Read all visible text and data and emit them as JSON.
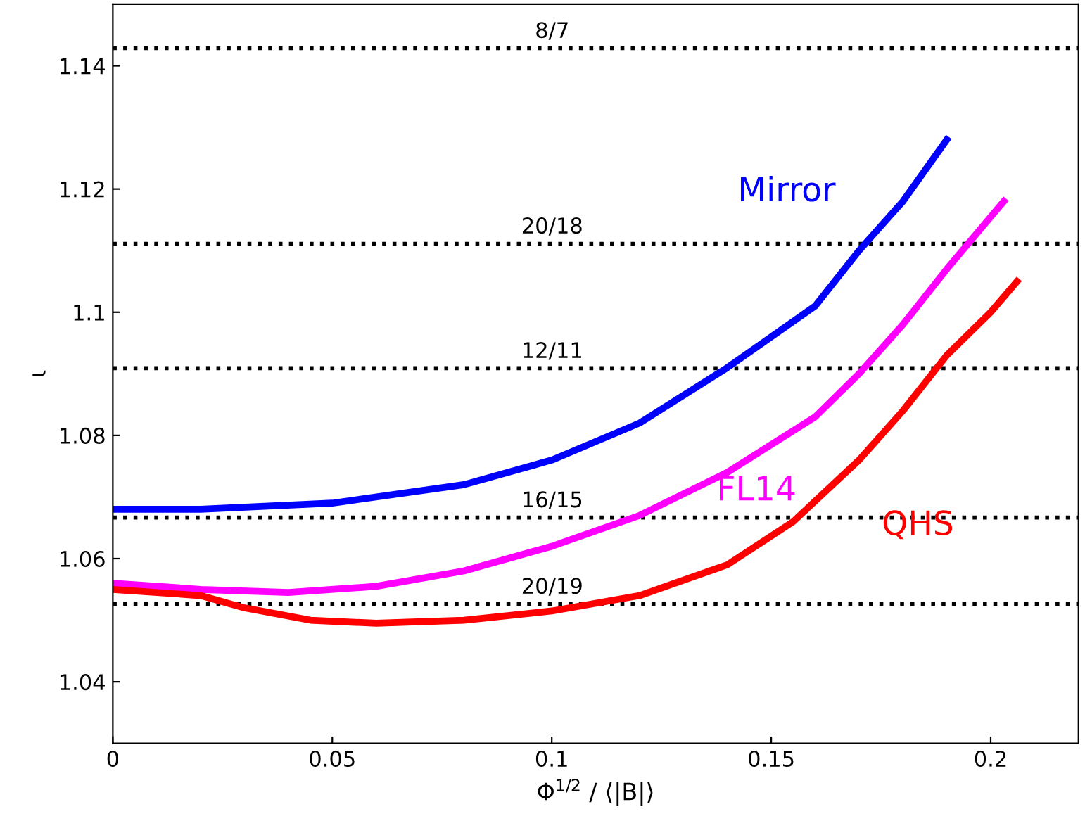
{
  "chart_data": {
    "type": "line",
    "xlabel": "Φ$^{1/2}$ / ⟨|B|⟩",
    "ylabel": "ι",
    "xlim": [
      0,
      0.22
    ],
    "ylim": [
      1.03,
      1.15
    ],
    "xticks": [
      0,
      0.05,
      0.1,
      0.15,
      0.2
    ],
    "yticks": [
      1.04,
      1.06,
      1.08,
      1.1,
      1.12,
      1.14
    ],
    "grid": false,
    "legend": false,
    "marker": "none",
    "line_style": "solid",
    "series": [
      {
        "name": "Mirror",
        "color": "#0000ff",
        "x": [
          0,
          0.02,
          0.05,
          0.08,
          0.1,
          0.12,
          0.14,
          0.16,
          0.17,
          0.18,
          0.19
        ],
        "values": [
          1.068,
          1.068,
          1.069,
          1.072,
          1.076,
          1.082,
          1.091,
          1.101,
          1.11,
          1.118,
          1.128
        ]
      },
      {
        "name": "FL14",
        "color": "#ff00ff",
        "x": [
          0,
          0.02,
          0.04,
          0.06,
          0.08,
          0.1,
          0.12,
          0.14,
          0.16,
          0.17,
          0.18,
          0.19,
          0.203
        ],
        "values": [
          1.056,
          1.055,
          1.0545,
          1.0555,
          1.058,
          1.062,
          1.067,
          1.074,
          1.083,
          1.09,
          1.098,
          1.107,
          1.118
        ]
      },
      {
        "name": "QHS",
        "color": "#ff0000",
        "x": [
          0,
          0.02,
          0.03,
          0.045,
          0.06,
          0.08,
          0.1,
          0.12,
          0.14,
          0.155,
          0.17,
          0.18,
          0.19,
          0.2,
          0.206
        ],
        "values": [
          1.055,
          1.054,
          1.052,
          1.05,
          1.0495,
          1.05,
          1.0515,
          1.054,
          1.059,
          1.066,
          1.076,
          1.084,
          1.093,
          1.1,
          1.105
        ]
      }
    ],
    "ref_lines": [
      {
        "axis": "y",
        "value": 1.142857,
        "color": "#000000",
        "line_style": "dotted"
      },
      {
        "axis": "y",
        "value": 1.111111,
        "color": "#000000",
        "line_style": "dotted"
      },
      {
        "axis": "y",
        "value": 1.090909,
        "color": "#000000",
        "line_style": "dotted"
      },
      {
        "axis": "y",
        "value": 1.066667,
        "color": "#000000",
        "line_style": "dotted"
      },
      {
        "axis": "y",
        "value": 1.052632,
        "color": "#000000",
        "line_style": "dotted"
      }
    ],
    "annotations": [
      {
        "text": "8/7",
        "y": 1.142857
      },
      {
        "text": "20/18",
        "y": 1.111111
      },
      {
        "text": "12/11",
        "y": 1.090909
      },
      {
        "text": "16/15",
        "y": 1.066667
      },
      {
        "text": "20/19",
        "y": 1.052632
      }
    ]
  }
}
